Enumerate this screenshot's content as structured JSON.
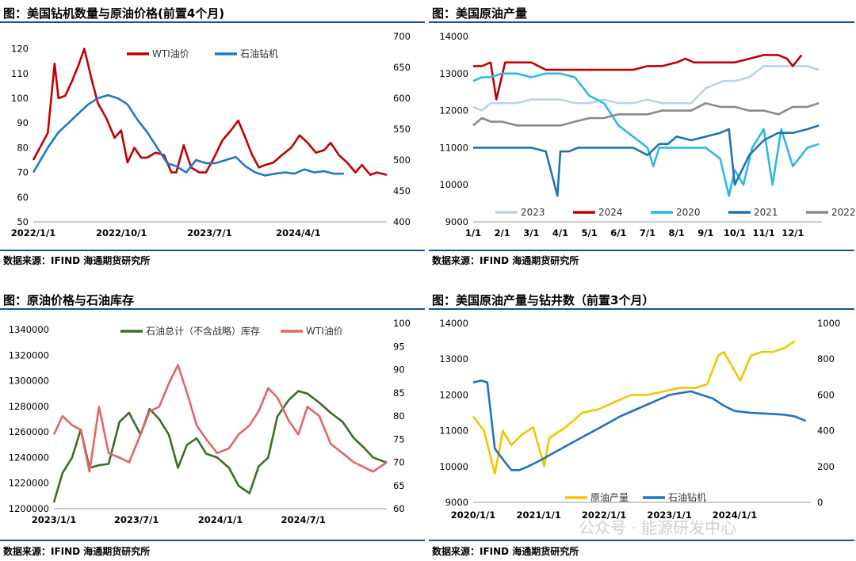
{
  "source_note": "数据来源：IFIND   海通期货研究所",
  "watermark": "公众号 · 能源研发中心",
  "chart_data": [
    {
      "id": "c1",
      "type": "line",
      "title": "图：美国钻机数量与原油价格(前置4个月)",
      "x_ticks": [
        "2022/1/1",
        "2022/10/1",
        "2023/7/1",
        "2024/4/1"
      ],
      "y_left": {
        "ticks": [
          50,
          60,
          70,
          80,
          90,
          100,
          110,
          120
        ],
        "lim": [
          50,
          125
        ]
      },
      "y_right": {
        "ticks": [
          400,
          450,
          500,
          550,
          600,
          650,
          700
        ],
        "lim": [
          400,
          700
        ]
      },
      "x_range": [
        "2022/1/1",
        "2024/12/31"
      ],
      "legend_position": "top",
      "colors": {
        "WTI油价": "#c00000",
        "石油钻机": "#1f78c8"
      },
      "series": [
        {
          "name": "WTI油价",
          "axis": "left",
          "x": [
            "2022/1/1",
            "2022/2/15",
            "2022/3/8",
            "2022/3/20",
            "2022/4/10",
            "2022/5/1",
            "2022/5/20",
            "2022/6/8",
            "2022/6/30",
            "2022/7/20",
            "2022/8/15",
            "2022/9/10",
            "2022/9/30",
            "2022/10/20",
            "2022/11/10",
            "2022/12/1",
            "2022/12/20",
            "2023/1/15",
            "2023/2/10",
            "2023/3/5",
            "2023/3/20",
            "2023/4/12",
            "2023/5/5",
            "2023/5/30",
            "2023/6/20",
            "2023/7/15",
            "2023/8/10",
            "2023/9/5",
            "2023/9/28",
            "2023/10/20",
            "2023/11/10",
            "2023/12/1",
            "2023/12/20",
            "2024/1/15",
            "2024/2/10",
            "2024/3/10",
            "2024/4/5",
            "2024/4/30",
            "2024/5/25",
            "2024/6/20",
            "2024/7/10",
            "2024/8/5",
            "2024/8/30",
            "2024/9/25",
            "2024/10/15",
            "2024/11/10",
            "2024/12/1",
            "2024/12/31"
          ],
          "values": [
            75,
            86,
            114,
            100,
            101,
            107,
            113,
            120,
            108,
            98,
            92,
            84,
            87,
            74,
            80,
            76,
            76,
            78,
            77,
            70,
            70,
            81,
            72,
            70,
            70,
            76,
            83,
            87,
            91,
            84,
            77,
            72,
            73,
            74,
            77,
            80,
            85,
            82,
            78,
            79,
            82,
            77,
            74,
            70,
            73,
            69,
            70,
            69
          ]
        },
        {
          "name": "石油钻机",
          "axis": "right",
          "x": [
            "2022/1/1",
            "2022/2/15",
            "2022/3/20",
            "2022/4/20",
            "2022/5/20",
            "2022/6/20",
            "2022/7/20",
            "2022/8/20",
            "2022/9/20",
            "2022/10/20",
            "2022/11/20",
            "2022/12/20",
            "2023/1/20",
            "2023/2/20",
            "2023/3/20",
            "2023/4/20",
            "2023/5/20",
            "2023/6/20",
            "2023/7/20",
            "2023/8/20",
            "2023/9/20",
            "2023/10/20",
            "2023/11/20",
            "2023/12/20",
            "2024/1/20",
            "2024/2/20",
            "2024/3/20",
            "2024/4/20",
            "2024/5/20",
            "2024/6/20",
            "2024/7/20",
            "2024/8/20"
          ],
          "values": [
            480,
            520,
            545,
            560,
            575,
            590,
            600,
            605,
            600,
            590,
            565,
            545,
            520,
            495,
            490,
            480,
            500,
            495,
            495,
            500,
            505,
            490,
            480,
            475,
            478,
            480,
            478,
            485,
            480,
            482,
            478,
            478
          ]
        }
      ]
    },
    {
      "id": "c2",
      "type": "line",
      "title": "图：美国原油产量",
      "x_ticks": [
        "1/1",
        "2/1",
        "3/1",
        "4/1",
        "5/1",
        "6/1",
        "7/1",
        "8/1",
        "9/1",
        "10/1",
        "11/1",
        "12/1"
      ],
      "y": {
        "ticks": [
          9000,
          10000,
          11000,
          12000,
          13000,
          14000
        ],
        "lim": [
          9000,
          14000
        ]
      },
      "legend_position": "bottom",
      "colors": {
        "2023": "#b8d3ec",
        "2024": "#c00000",
        "2020": "#2bb8e8",
        "2021": "#1f72b8",
        "2022": "#8a8a8a"
      },
      "series": [
        {
          "name": "2023",
          "x": [
            1.0,
            1.3,
            1.6,
            2.0,
            2.5,
            3.0,
            3.5,
            4.0,
            4.5,
            5.0,
            5.5,
            6.0,
            6.5,
            7.0,
            7.5,
            8.0,
            8.5,
            9.0,
            9.3,
            9.6,
            10.0,
            10.5,
            11.0,
            11.5,
            12.0,
            12.5,
            12.9
          ],
          "values": [
            12100,
            12000,
            12200,
            12200,
            12200,
            12300,
            12300,
            12300,
            12200,
            12200,
            12300,
            12200,
            12200,
            12300,
            12200,
            12200,
            12200,
            12600,
            12700,
            12800,
            12800,
            12900,
            13200,
            13200,
            13200,
            13200,
            13100
          ]
        },
        {
          "name": "2024",
          "x": [
            1.0,
            1.3,
            1.6,
            1.8,
            2.1,
            2.5,
            3.0,
            3.5,
            4.0,
            4.5,
            5.0,
            5.5,
            6.0,
            6.5,
            7.0,
            7.5,
            8.0,
            8.3,
            8.6,
            9.0,
            9.5,
            10.0,
            10.5,
            11.0,
            11.5,
            11.8,
            12.0,
            12.3
          ],
          "values": [
            13200,
            13200,
            13300,
            12300,
            13300,
            13300,
            13300,
            13100,
            13100,
            13100,
            13100,
            13100,
            13100,
            13100,
            13200,
            13200,
            13300,
            13400,
            13300,
            13300,
            13300,
            13300,
            13400,
            13500,
            13500,
            13400,
            13200,
            13500
          ]
        },
        {
          "name": "2020",
          "x": [
            1.0,
            1.3,
            1.6,
            2.0,
            2.5,
            3.0,
            3.5,
            4.0,
            4.5,
            5.0,
            5.5,
            6.0,
            6.5,
            7.0,
            7.2,
            7.4,
            7.7,
            8.0,
            8.5,
            9.0,
            9.5,
            9.8,
            10.0,
            10.3,
            10.6,
            11.0,
            11.3,
            11.6,
            12.0,
            12.5,
            12.9
          ],
          "values": [
            12800,
            12900,
            12900,
            13000,
            13000,
            12900,
            13000,
            13000,
            12900,
            12400,
            12200,
            11600,
            11300,
            11000,
            10500,
            11000,
            11000,
            11000,
            11000,
            11000,
            10700,
            9700,
            10400,
            10000,
            11000,
            11500,
            10000,
            11500,
            10500,
            11000,
            11100
          ]
        },
        {
          "name": "2021",
          "x": [
            1.0,
            1.5,
            2.0,
            2.5,
            3.0,
            3.5,
            3.9,
            4.0,
            4.3,
            4.6,
            5.0,
            5.5,
            6.0,
            6.5,
            7.0,
            7.4,
            7.7,
            8.0,
            8.5,
            9.0,
            9.5,
            9.8,
            10.0,
            10.5,
            11.0,
            11.5,
            12.0,
            12.5,
            12.9
          ],
          "values": [
            11000,
            11000,
            11000,
            11000,
            11000,
            10900,
            9700,
            10900,
            10900,
            11000,
            11000,
            11000,
            11000,
            11000,
            10800,
            11100,
            11100,
            11300,
            11200,
            11300,
            11400,
            11500,
            10000,
            10800,
            11200,
            11400,
            11400,
            11500,
            11600
          ]
        },
        {
          "name": "2022",
          "x": [
            1.0,
            1.3,
            1.6,
            2.0,
            2.5,
            3.0,
            3.5,
            4.0,
            4.5,
            5.0,
            5.5,
            6.0,
            6.5,
            7.0,
            7.5,
            8.0,
            8.5,
            9.0,
            9.5,
            10.0,
            10.5,
            11.0,
            11.5,
            12.0,
            12.5,
            12.9
          ],
          "values": [
            11600,
            11800,
            11700,
            11700,
            11600,
            11600,
            11600,
            11600,
            11700,
            11800,
            11800,
            11900,
            11900,
            11900,
            12000,
            12000,
            12000,
            12200,
            12100,
            12100,
            12000,
            12000,
            11900,
            12100,
            12100,
            12200
          ]
        }
      ]
    },
    {
      "id": "c3",
      "type": "line",
      "title": "图：原油价格与石油库存",
      "x_ticks": [
        "2023/1/1",
        "2023/7/1",
        "2024/1/1",
        "2024/7/1"
      ],
      "y_left": {
        "ticks": [
          1200000,
          1220000,
          1240000,
          1260000,
          1280000,
          1300000,
          1320000,
          1340000
        ],
        "lim": [
          1200000,
          1345000
        ]
      },
      "y_right": {
        "ticks": [
          60,
          65,
          70,
          75,
          80,
          85,
          90,
          95,
          100
        ],
        "lim": [
          60,
          100
        ]
      },
      "x_range": [
        "2023/1/1",
        "2024/12/31"
      ],
      "legend_position": "top",
      "colors": {
        "石油总计（不含战略）库存": "#3b6e28",
        "WTI油价": "#e06666"
      },
      "series": [
        {
          "name": "石油总计（不含战略）库存",
          "axis": "left",
          "x": [
            "2023/1/1",
            "2023/1/20",
            "2023/2/10",
            "2023/3/1",
            "2023/3/20",
            "2023/4/10",
            "2023/5/1",
            "2023/5/25",
            "2023/6/15",
            "2023/7/10",
            "2023/7/30",
            "2023/8/20",
            "2023/9/10",
            "2023/9/30",
            "2023/10/20",
            "2023/11/10",
            "2023/12/1",
            "2023/12/25",
            "2024/1/20",
            "2024/2/10",
            "2024/3/5",
            "2024/3/25",
            "2024/4/15",
            "2024/5/5",
            "2024/5/30",
            "2024/6/20",
            "2024/7/10",
            "2024/8/5",
            "2024/8/30",
            "2024/9/25",
            "2024/10/20",
            "2024/11/10",
            "2024/12/1",
            "2024/12/31"
          ],
          "values": [
            1205000,
            1228000,
            1240000,
            1262000,
            1232000,
            1234000,
            1235000,
            1268000,
            1275000,
            1258000,
            1278000,
            1270000,
            1258000,
            1232000,
            1250000,
            1255000,
            1243000,
            1240000,
            1232000,
            1218000,
            1212000,
            1233000,
            1240000,
            1272000,
            1285000,
            1292000,
            1290000,
            1283000,
            1275000,
            1268000,
            1255000,
            1248000,
            1240000,
            1236000
          ]
        },
        {
          "name": "WTI油价",
          "axis": "right",
          "x": [
            "2023/1/1",
            "2023/1/20",
            "2023/2/10",
            "2023/3/1",
            "2023/3/20",
            "2023/4/10",
            "2023/5/1",
            "2023/5/25",
            "2023/6/15",
            "2023/7/10",
            "2023/7/30",
            "2023/8/20",
            "2023/9/10",
            "2023/9/30",
            "2023/10/20",
            "2023/11/10",
            "2023/12/1",
            "2023/12/25",
            "2024/1/20",
            "2024/2/10",
            "2024/3/5",
            "2024/3/25",
            "2024/4/15",
            "2024/5/5",
            "2024/5/30",
            "2024/6/20",
            "2024/7/10",
            "2024/8/5",
            "2024/8/30",
            "2024/9/25",
            "2024/10/20",
            "2024/11/10",
            "2024/12/1",
            "2024/12/31"
          ],
          "values": [
            76,
            80,
            78,
            77,
            68,
            82,
            72,
            71,
            70,
            76,
            81,
            82,
            87,
            91,
            85,
            78,
            75,
            72,
            73,
            76,
            78,
            81,
            86,
            84,
            79,
            76,
            82,
            80,
            74,
            72,
            70,
            69,
            68,
            70
          ]
        }
      ]
    },
    {
      "id": "c4",
      "type": "line",
      "title": "图：美国原油产量与钻井数（前置3个月）",
      "x_ticks": [
        "2020/1/1",
        "2021/1/1",
        "2022/1/1",
        "2023/1/1",
        "2024/1/1"
      ],
      "y_left": {
        "ticks": [
          9000,
          10000,
          11000,
          12000,
          13000,
          14000
        ],
        "lim": [
          9000,
          14000
        ]
      },
      "y_right": {
        "ticks": [
          0,
          200,
          400,
          600,
          800,
          1000
        ],
        "lim": [
          0,
          1000
        ]
      },
      "x_range": [
        "2020/1/1",
        "2025/3/1"
      ],
      "legend_position": "bottom",
      "colors": {
        "原油产量": "#f5c400",
        "石油钻机": "#1f72c4"
      },
      "series": [
        {
          "name": "原油产量",
          "axis": "left",
          "x": [
            "2020/1/1",
            "2020/3/1",
            "2020/5/1",
            "2020/6/15",
            "2020/8/1",
            "2020/10/1",
            "2020/12/1",
            "2021/2/1",
            "2021/3/1",
            "2021/6/1",
            "2021/9/1",
            "2021/12/1",
            "2022/3/1",
            "2022/6/1",
            "2022/9/1",
            "2022/12/1",
            "2023/3/1",
            "2023/6/1",
            "2023/8/1",
            "2023/10/1",
            "2023/11/1",
            "2024/2/1",
            "2024/4/1",
            "2024/6/1",
            "2024/8/1",
            "2024/10/1",
            "2024/12/1"
          ],
          "values": [
            11400,
            11000,
            9800,
            11000,
            10600,
            10900,
            11100,
            10000,
            10800,
            11100,
            11500,
            11600,
            11800,
            12000,
            12000,
            12100,
            12200,
            12200,
            12300,
            13100,
            13200,
            12400,
            13100,
            13200,
            13200,
            13300,
            13500
          ]
        },
        {
          "name": "石油钻机",
          "axis": "right",
          "x": [
            "2020/1/1",
            "2020/2/15",
            "2020/3/20",
            "2020/5/1",
            "2020/6/15",
            "2020/8/1",
            "2020/9/15",
            "2020/11/1",
            "2021/1/1",
            "2021/4/1",
            "2021/7/1",
            "2021/10/1",
            "2022/1/1",
            "2022/4/1",
            "2022/7/1",
            "2022/10/1",
            "2023/1/1",
            "2023/3/1",
            "2023/5/1",
            "2023/7/1",
            "2023/9/1",
            "2023/11/1",
            "2024/1/1",
            "2024/4/1",
            "2024/7/1",
            "2024/10/1",
            "2024/12/1",
            "2025/2/1"
          ],
          "values": [
            670,
            680,
            670,
            300,
            240,
            180,
            180,
            200,
            230,
            280,
            330,
            380,
            430,
            480,
            520,
            560,
            600,
            610,
            620,
            600,
            580,
            540,
            510,
            500,
            495,
            490,
            480,
            455
          ]
        }
      ]
    }
  ]
}
